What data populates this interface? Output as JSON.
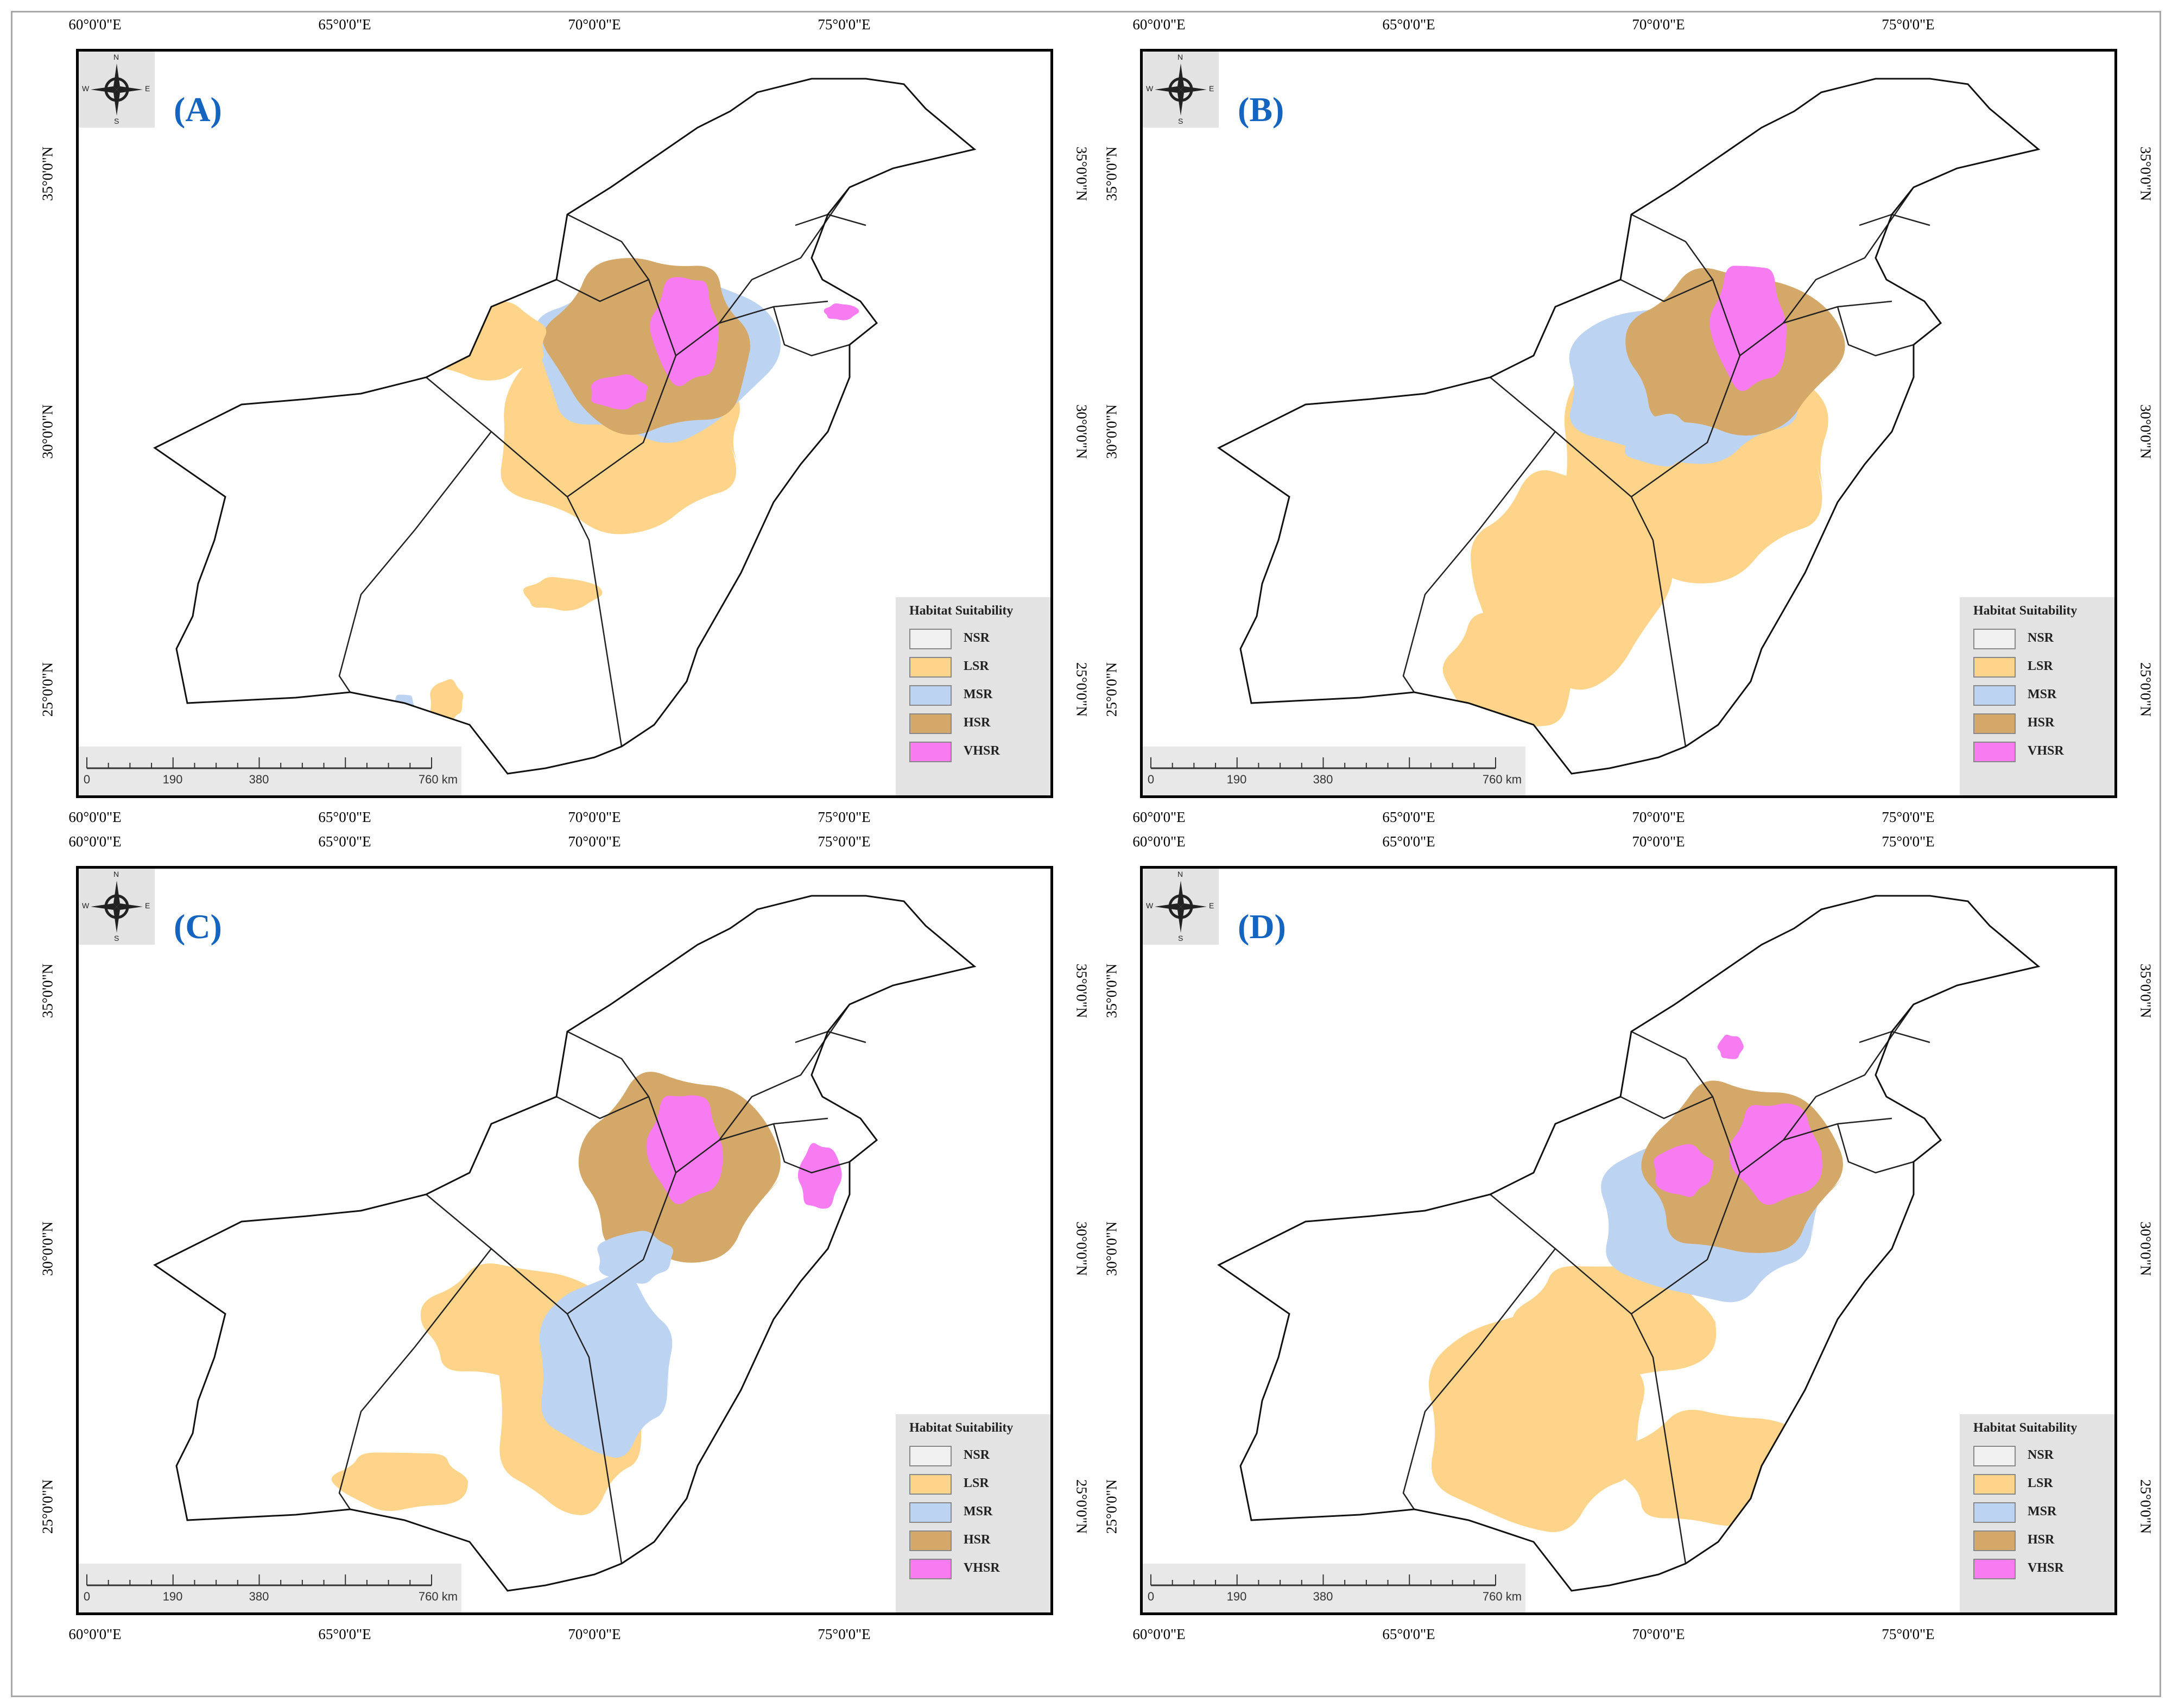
{
  "figure": {
    "graticule": {
      "lon_labels": [
        "60°0'0\"E",
        "65°0'0\"E",
        "70°0'0\"E",
        "75°0'0\"E"
      ],
      "lat_labels": [
        "35°0'0\"N",
        "30°0'0\"N",
        "25°0'0\"N"
      ]
    },
    "compass": {
      "n": "N",
      "s": "S",
      "e": "E",
      "w": "W"
    },
    "scalebar": {
      "ticks": [
        "0",
        "190",
        "380",
        "760 km"
      ]
    },
    "legend": {
      "title": "Habitat Suitability",
      "classes": [
        {
          "label": "NSR",
          "color": "#f0f0f0"
        },
        {
          "label": "LSR",
          "color": "#fdd489"
        },
        {
          "label": "MSR",
          "color": "#bdd3f2"
        },
        {
          "label": "HSR",
          "color": "#d4a868"
        },
        {
          "label": "VHSR",
          "color": "#f77bf1"
        }
      ]
    },
    "panels": [
      {
        "letter": "(A)"
      },
      {
        "letter": "(B)"
      },
      {
        "letter": "(C)"
      },
      {
        "letter": "(D)"
      }
    ]
  }
}
